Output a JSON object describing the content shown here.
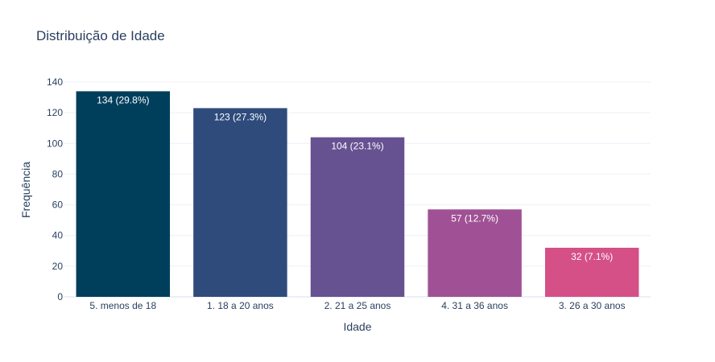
{
  "chart_data": {
    "type": "bar",
    "title": "Distribuição de Idade",
    "xlabel": "Idade",
    "ylabel": "Frequência",
    "categories": [
      "5. menos de 18",
      "1. 18 a 20 anos",
      "2. 21 a 25 anos",
      "4. 31 a 36 anos",
      "3. 26 a 30 anos"
    ],
    "values": [
      134,
      123,
      104,
      57,
      32
    ],
    "data_labels": [
      "134 (29.8%)",
      "123 (27.3%)",
      "104 (23.1%)",
      "57 (12.7%)",
      "32 (7.1%)"
    ],
    "colors": [
      "#003f5c",
      "#2f4b7c",
      "#665191",
      "#a05195",
      "#d45087"
    ],
    "ylim": [
      0,
      140
    ],
    "yticks": [
      0,
      20,
      40,
      60,
      80,
      100,
      120,
      140
    ],
    "grid": true,
    "legend": "none"
  }
}
